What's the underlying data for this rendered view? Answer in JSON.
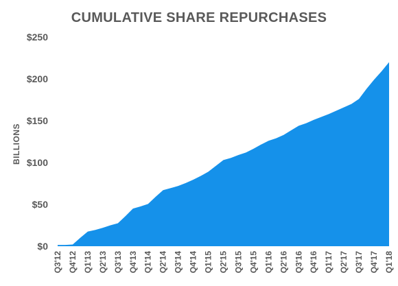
{
  "chart_data": {
    "type": "area",
    "title": "CUMULATIVE SHARE REPURCHASES",
    "xlabel": "",
    "ylabel": "BILLIONS",
    "ylim": [
      0,
      250
    ],
    "yticks": [
      0,
      50,
      100,
      150,
      200,
      250
    ],
    "ytick_labels": [
      "$0",
      "$50",
      "$100",
      "$150",
      "$200",
      "$250"
    ],
    "grid": false,
    "legend": "none",
    "color": "#1591EA",
    "categories": [
      "Q3'12",
      "Q4'12",
      "Q1'13",
      "Q2'13",
      "Q3'13",
      "Q4'13",
      "Q1'14",
      "Q2'14",
      "Q3'14",
      "Q4'14",
      "Q1'15",
      "Q2'15",
      "Q3'15",
      "Q4'15",
      "Q1'16",
      "Q2'16",
      "Q3'16",
      "Q4'16",
      "Q1'17",
      "Q2'17",
      "Q3'17",
      "Q4'17",
      "Q1'18"
    ],
    "x": [
      "Q3'12",
      "Q3'12",
      "Q4'12",
      "Q4'12",
      "Q1'13",
      "Q1'13",
      "Q2'13",
      "Q2'13",
      "Q3'13",
      "Q3'13",
      "Q4'13",
      "Q4'13",
      "Q1'14",
      "Q1'14",
      "Q2'14",
      "Q2'14",
      "Q3'14",
      "Q3'14",
      "Q4'14",
      "Q4'14",
      "Q1'15",
      "Q1'15",
      "Q2'15",
      "Q2'15",
      "Q3'15",
      "Q3'15",
      "Q4'15",
      "Q4'15",
      "Q1'16",
      "Q1'16",
      "Q2'16",
      "Q2'16",
      "Q3'16",
      "Q3'16",
      "Q4'16",
      "Q4'16",
      "Q1'17",
      "Q1'17",
      "Q2'17",
      "Q2'17",
      "Q3'17",
      "Q3'17",
      "Q4'17",
      "Q4'17",
      "Q1'18"
    ],
    "values": [
      1.5,
      1.5,
      2,
      10,
      17.5,
      19.5,
      22,
      25,
      27.5,
      36,
      45,
      47.5,
      50.5,
      59,
      67,
      69.5,
      72,
      75.5,
      79.5,
      84,
      89,
      96,
      103,
      105.5,
      109,
      112,
      116.5,
      121.5,
      126,
      129,
      133,
      138.5,
      144,
      147,
      151,
      154.5,
      158,
      162,
      166,
      170,
      176,
      188,
      199,
      209,
      220
    ]
  }
}
